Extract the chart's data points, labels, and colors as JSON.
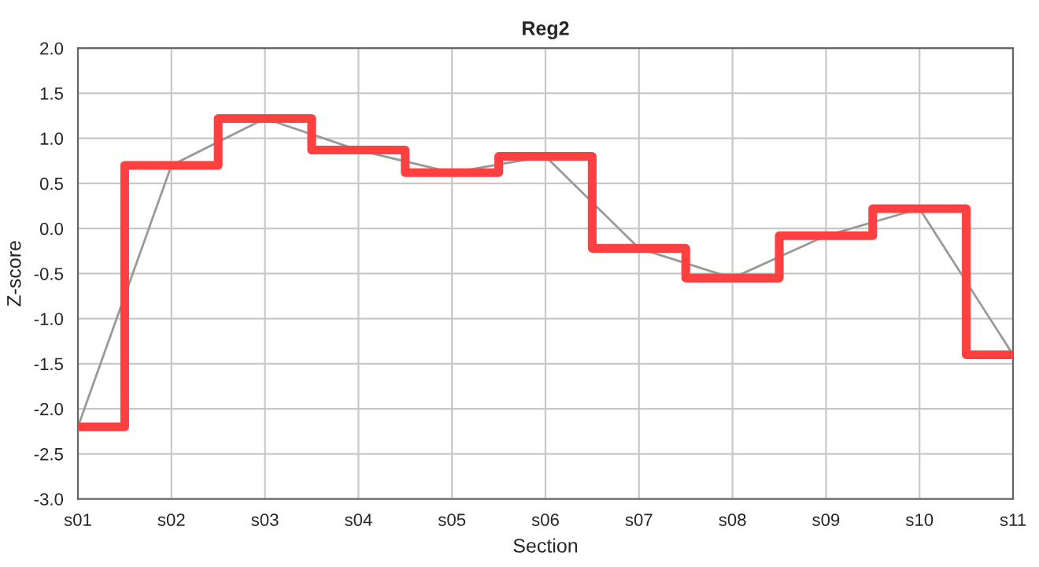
{
  "chart_data": {
    "type": "step",
    "title": "Reg2",
    "xlabel": "Section",
    "ylabel": "Z-score",
    "categories": [
      "s01",
      "s02",
      "s03",
      "s04",
      "s05",
      "s06",
      "s07",
      "s08",
      "s09",
      "s10",
      "s11"
    ],
    "series": [
      {
        "type": "line",
        "color": "#999999",
        "values": [
          -2.2,
          0.7,
          1.22,
          0.87,
          0.62,
          0.8,
          -0.22,
          -0.55,
          -0.08,
          0.22,
          -1.4
        ]
      },
      {
        "color": "#ff4040",
        "values": [
          -2.2,
          0.7,
          1.22,
          0.87,
          0.62,
          0.8,
          -0.22,
          -0.55,
          -0.08,
          0.22,
          -1.4
        ]
      }
    ],
    "ylim": [
      -3.0,
      2.0
    ],
    "yticks": [
      {
        "value": -3.0,
        "label": "-3.0"
      },
      {
        "value": -2.5,
        "label": "-2.5"
      },
      {
        "value": -2.0,
        "label": "-2.0"
      },
      {
        "value": -1.5,
        "label": "-1.5"
      },
      {
        "value": -1.0,
        "label": "-1.0"
      },
      {
        "value": -0.5,
        "label": "-0.5"
      },
      {
        "value": 0.0,
        "label": "0.0"
      },
      {
        "value": 0.5,
        "label": "0.5"
      },
      {
        "value": 1.0,
        "label": "1.0"
      },
      {
        "value": 1.5,
        "label": "1.5"
      },
      {
        "value": 2.0,
        "label": "2.0"
      }
    ],
    "grid": true
  }
}
